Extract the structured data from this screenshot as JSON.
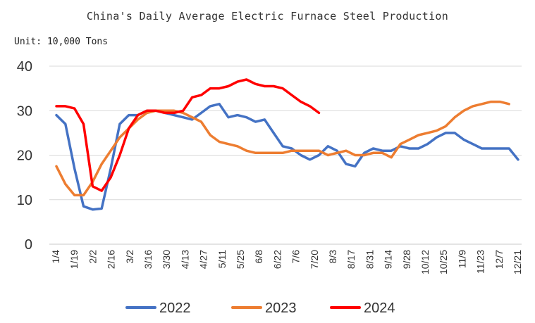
{
  "chart_data": {
    "type": "line",
    "title": "China's Daily Average Electric Furnace Steel Production",
    "unit_label": "Unit: 10,000 Tons",
    "xlabel": "",
    "ylabel": "",
    "ylim": [
      0,
      40
    ],
    "yticks": [
      0,
      10,
      20,
      30,
      40
    ],
    "grid": true,
    "legend_position": "bottom",
    "x_tick_labels": [
      "1/4",
      "1/19",
      "2/2",
      "2/16",
      "3/2",
      "3/16",
      "3/30",
      "4/13",
      "4/27",
      "5/11",
      "5/25",
      "6/8",
      "6/22",
      "7/6",
      "7/20",
      "8/3",
      "8/17",
      "8/31",
      "9/14",
      "9/28",
      "10/12",
      "10/25",
      "11/9",
      "11/23",
      "12/7",
      "12/21"
    ],
    "series": [
      {
        "name": "2022",
        "color": "#4472C4",
        "values": [
          29,
          27,
          17,
          8.5,
          7.8,
          8,
          17,
          27,
          29,
          29,
          30,
          30,
          29.5,
          29,
          28.5,
          28,
          29.5,
          31,
          31.5,
          28.5,
          29,
          28.5,
          27.5,
          28,
          25,
          22,
          21.5,
          20,
          19,
          20,
          22,
          21,
          18,
          17.5,
          20.5,
          21.5,
          21,
          21,
          22,
          21.5,
          21.5,
          22.5,
          24,
          25,
          25,
          23.5,
          22.5,
          21.5,
          21.5,
          21.5,
          21.5,
          19
        ]
      },
      {
        "name": "2023",
        "color": "#ED7D31",
        "values": [
          17.5,
          13.5,
          11,
          11,
          14,
          18,
          21,
          24,
          26,
          28,
          29.5,
          30,
          30,
          30,
          29.5,
          28.5,
          27.5,
          24.5,
          23,
          22.5,
          22,
          21,
          20.5,
          20.5,
          20.5,
          20.5,
          21,
          21,
          21,
          21,
          20,
          20.5,
          21,
          20,
          20,
          20.5,
          20.5,
          19.5,
          22.5,
          23.5,
          24.5,
          25,
          25.5,
          26.5,
          28.5,
          30,
          31,
          31.5,
          32,
          32,
          31.5
        ]
      },
      {
        "name": "2024",
        "color": "#FF0000",
        "values": [
          31,
          31,
          30.5,
          27,
          13,
          12,
          15,
          20,
          26,
          29,
          30,
          30,
          29.5,
          29.5,
          30,
          33,
          33.5,
          35,
          35,
          35.5,
          36.5,
          37,
          36,
          35.5,
          35.5,
          35,
          33.5,
          32,
          31,
          29.5
        ]
      }
    ]
  }
}
